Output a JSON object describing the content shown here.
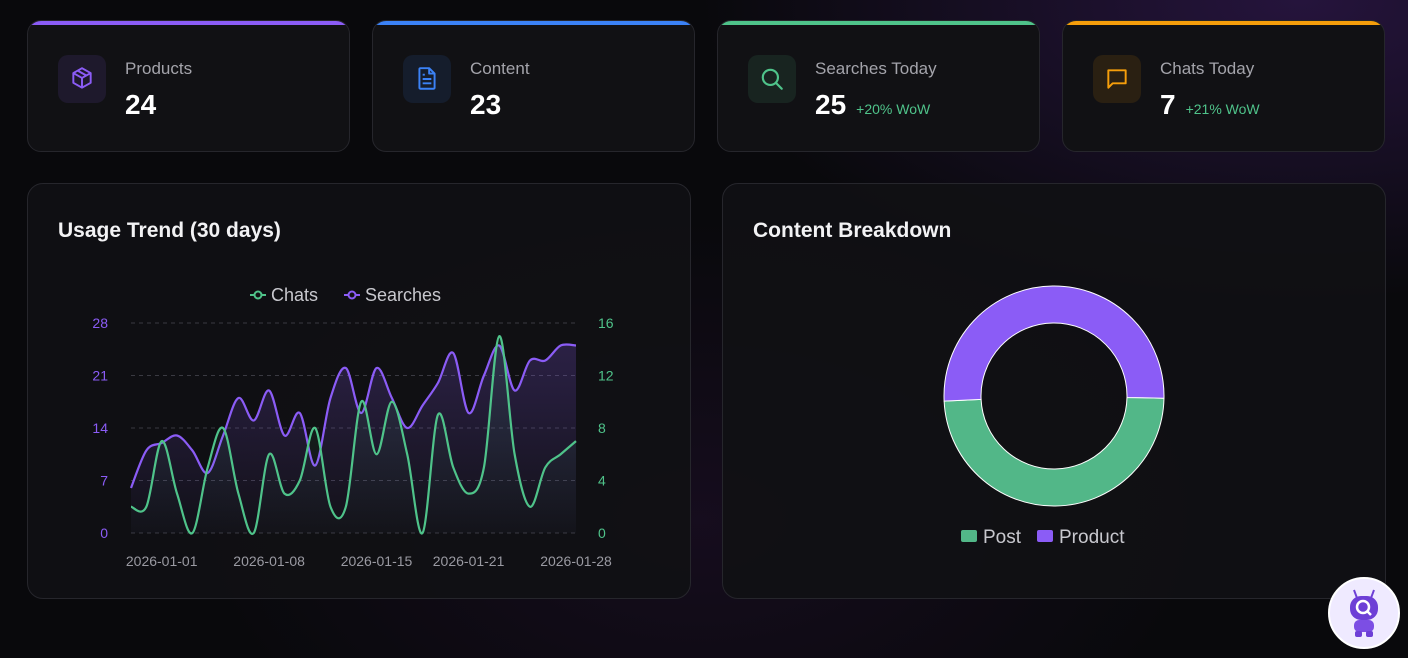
{
  "colors": {
    "purple": "#8b5cf6",
    "blue": "#3b82f6",
    "green": "#4fc38a",
    "orange": "#f59e0b"
  },
  "cards": [
    {
      "label": "Products",
      "value": "24",
      "icon": "package-icon",
      "color": "#8b5cf6"
    },
    {
      "label": "Content",
      "value": "23",
      "icon": "document-icon",
      "color": "#3b82f6"
    },
    {
      "label": "Searches Today",
      "value": "25",
      "wow": "+20% WoW",
      "icon": "search-icon",
      "color": "#4fc38a"
    },
    {
      "label": "Chats Today",
      "value": "7",
      "wow": "+21% WoW",
      "icon": "chat-icon",
      "color": "#f59e0b"
    }
  ],
  "usage": {
    "title": "Usage Trend (30 days)"
  },
  "breakdown": {
    "title": "Content Breakdown"
  },
  "chart_data": [
    {
      "type": "line",
      "title": "Usage Trend (30 days)",
      "x": [
        "2025-12-30",
        "2025-12-31",
        "2026-01-01",
        "2026-01-02",
        "2026-01-03",
        "2026-01-04",
        "2026-01-05",
        "2026-01-06",
        "2026-01-07",
        "2026-01-08",
        "2026-01-09",
        "2026-01-10",
        "2026-01-11",
        "2026-01-12",
        "2026-01-13",
        "2026-01-14",
        "2026-01-15",
        "2026-01-16",
        "2026-01-17",
        "2026-01-18",
        "2026-01-19",
        "2026-01-20",
        "2026-01-21",
        "2026-01-22",
        "2026-01-23",
        "2026-01-24",
        "2026-01-25",
        "2026-01-26",
        "2026-01-27",
        "2026-01-28"
      ],
      "xticks": [
        "2026-01-01",
        "2026-01-08",
        "2026-01-15",
        "2026-01-21",
        "2026-01-28"
      ],
      "series": [
        {
          "name": "Chats",
          "axis": "right",
          "color": "#4fc38a",
          "values": [
            2,
            2,
            7,
            3,
            0,
            5,
            8,
            3,
            0,
            6,
            3,
            4,
            8,
            2,
            2,
            10,
            6,
            10,
            6,
            0,
            9,
            5,
            3,
            5,
            15,
            6,
            2,
            5,
            6,
            7
          ]
        },
        {
          "name": "Searches",
          "axis": "left",
          "color": "#8b5cf6",
          "values": [
            6,
            11,
            12,
            13,
            11,
            8,
            13,
            18,
            15,
            19,
            13,
            16,
            9,
            18,
            22,
            16,
            22,
            18,
            14,
            17,
            20,
            24,
            16,
            21,
            25,
            19,
            23,
            23,
            25,
            25
          ]
        }
      ],
      "y_left": {
        "range": [
          0,
          28
        ],
        "ticks": [
          0,
          7,
          14,
          21,
          28
        ]
      },
      "y_right": {
        "range": [
          0,
          16
        ],
        "ticks": [
          0,
          4,
          8,
          12,
          16
        ]
      },
      "grid": true,
      "legend": "top"
    },
    {
      "type": "pie",
      "title": "Content Breakdown",
      "donut": true,
      "slices": [
        {
          "name": "Post",
          "value": 23,
          "color": "#52b788"
        },
        {
          "name": "Product",
          "value": 24,
          "color": "#8b5cf6"
        }
      ],
      "legend": "bottom"
    }
  ],
  "fab": {
    "icon": "robot-search-icon"
  }
}
